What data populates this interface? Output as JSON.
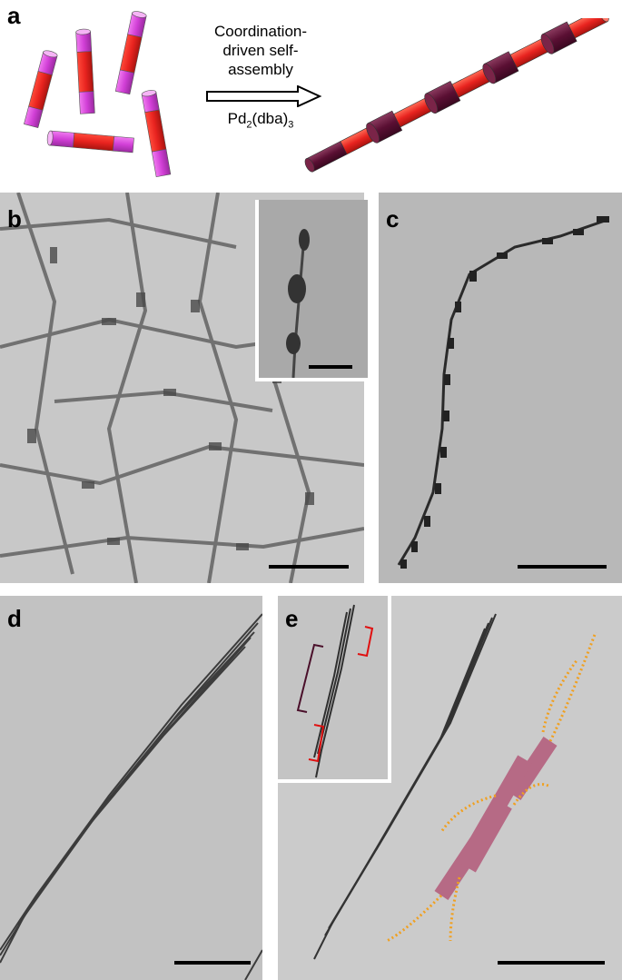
{
  "figure": {
    "panels": {
      "a": {
        "label": "a",
        "reaction": {
          "line1": "Coordination-",
          "line2": "driven self-",
          "line3": "assembly",
          "reagent_main": "Pd",
          "reagent_sub": "2",
          "reagent_tail": "(dba)",
          "reagent_sub2": "3"
        }
      },
      "b": {
        "label": "b"
      },
      "c": {
        "label": "c"
      },
      "d": {
        "label": "d"
      },
      "e": {
        "label": "e"
      }
    },
    "colors": {
      "rod_core": "#e8231f",
      "rod_end_free": "#d13fd6",
      "rod_end_bound": "#5a0f33",
      "tem_background": "#c9c9c9",
      "tem_dark": "#3a3a3a",
      "overlay_rod": "#b04a6e",
      "overlay_corona": "#f0a020",
      "bracket_dark": "#4a0f2a",
      "bracket_red": "#e01010"
    }
  }
}
